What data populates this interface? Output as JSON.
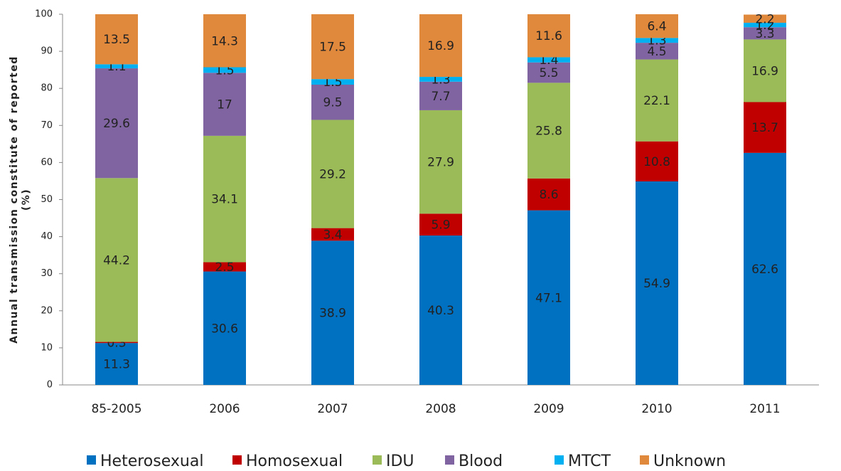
{
  "chart_data": {
    "type": "stacked_bar",
    "y_label": [
      "Annual transmission constitute of reported",
      "(%)"
    ],
    "categories": [
      "85-2005",
      "2006",
      "2007",
      "2008",
      "2009",
      "2010",
      "2011"
    ],
    "series": [
      {
        "name": "Heterosexual",
        "color": "#0070c0",
        "values": [
          11.3,
          30.6,
          38.9,
          40.3,
          47.1,
          54.9,
          62.6
        ]
      },
      {
        "name": "Homosexual",
        "color": "#c00000",
        "values": [
          0.3,
          2.5,
          3.4,
          5.9,
          8.6,
          10.8,
          13.7
        ]
      },
      {
        "name": "IDU",
        "color": "#9bbb59",
        "values": [
          44.2,
          34.1,
          29.2,
          27.9,
          25.8,
          22.1,
          16.9
        ]
      },
      {
        "name": "Blood",
        "color": "#8064a2",
        "values": [
          29.6,
          17,
          9.5,
          7.7,
          5.5,
          4.5,
          3.3
        ]
      },
      {
        "name": "MTCT",
        "color": "#00b0f0",
        "values": [
          1.1,
          1.5,
          1.5,
          1.3,
          1.4,
          1.3,
          1.2
        ]
      },
      {
        "name": "Unknown",
        "color": "#e0883c",
        "values": [
          13.5,
          14.3,
          17.5,
          16.9,
          11.6,
          6.4,
          2.2
        ]
      }
    ],
    "ylim": [
      0,
      100
    ],
    "yticks": [
      0,
      10,
      20,
      30,
      40,
      50,
      60,
      70,
      80,
      90,
      100
    ],
    "grid": false,
    "legend": "bottom"
  }
}
